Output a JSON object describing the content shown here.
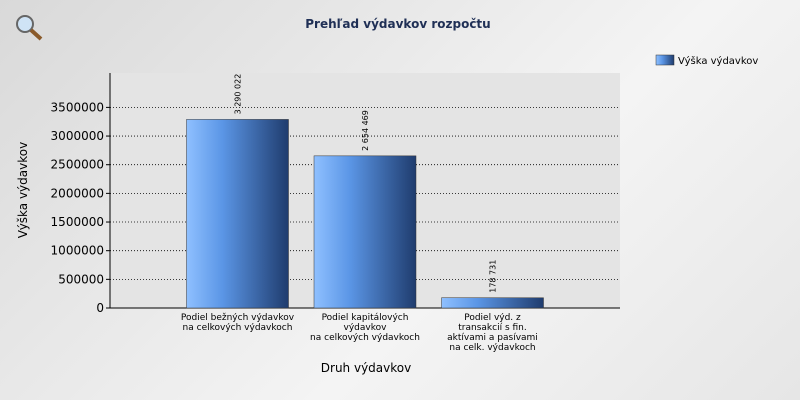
{
  "chart_data": {
    "type": "bar",
    "title": "Prehľad výdavkov rozpočtu",
    "categories": [
      "Podiel bežných výdavkov\nna celkových výdavkoch",
      "Podiel kapitálových\nvýdavkov\nna celkových výdavkoch",
      "Podiel výd. z\ntransakcií s fin.\naktívami a pasívami\nna celk. výdavkoch"
    ],
    "series": [
      {
        "name": "Výška výdavkov",
        "color": "#4f8ee8",
        "values": [
          3290022,
          2654469,
          178731
        ],
        "value_labels": [
          "3 290 022",
          "2 654 469",
          "178 731"
        ]
      }
    ],
    "x_label": "Druh výdavkov",
    "y_label": "Výška výdavkov",
    "ylim": [
      0,
      4100000
    ],
    "yticks": [
      0,
      500000,
      1000000,
      1500000,
      2000000,
      2500000,
      3000000,
      3500000
    ],
    "grid": true,
    "legend": "top-right"
  }
}
